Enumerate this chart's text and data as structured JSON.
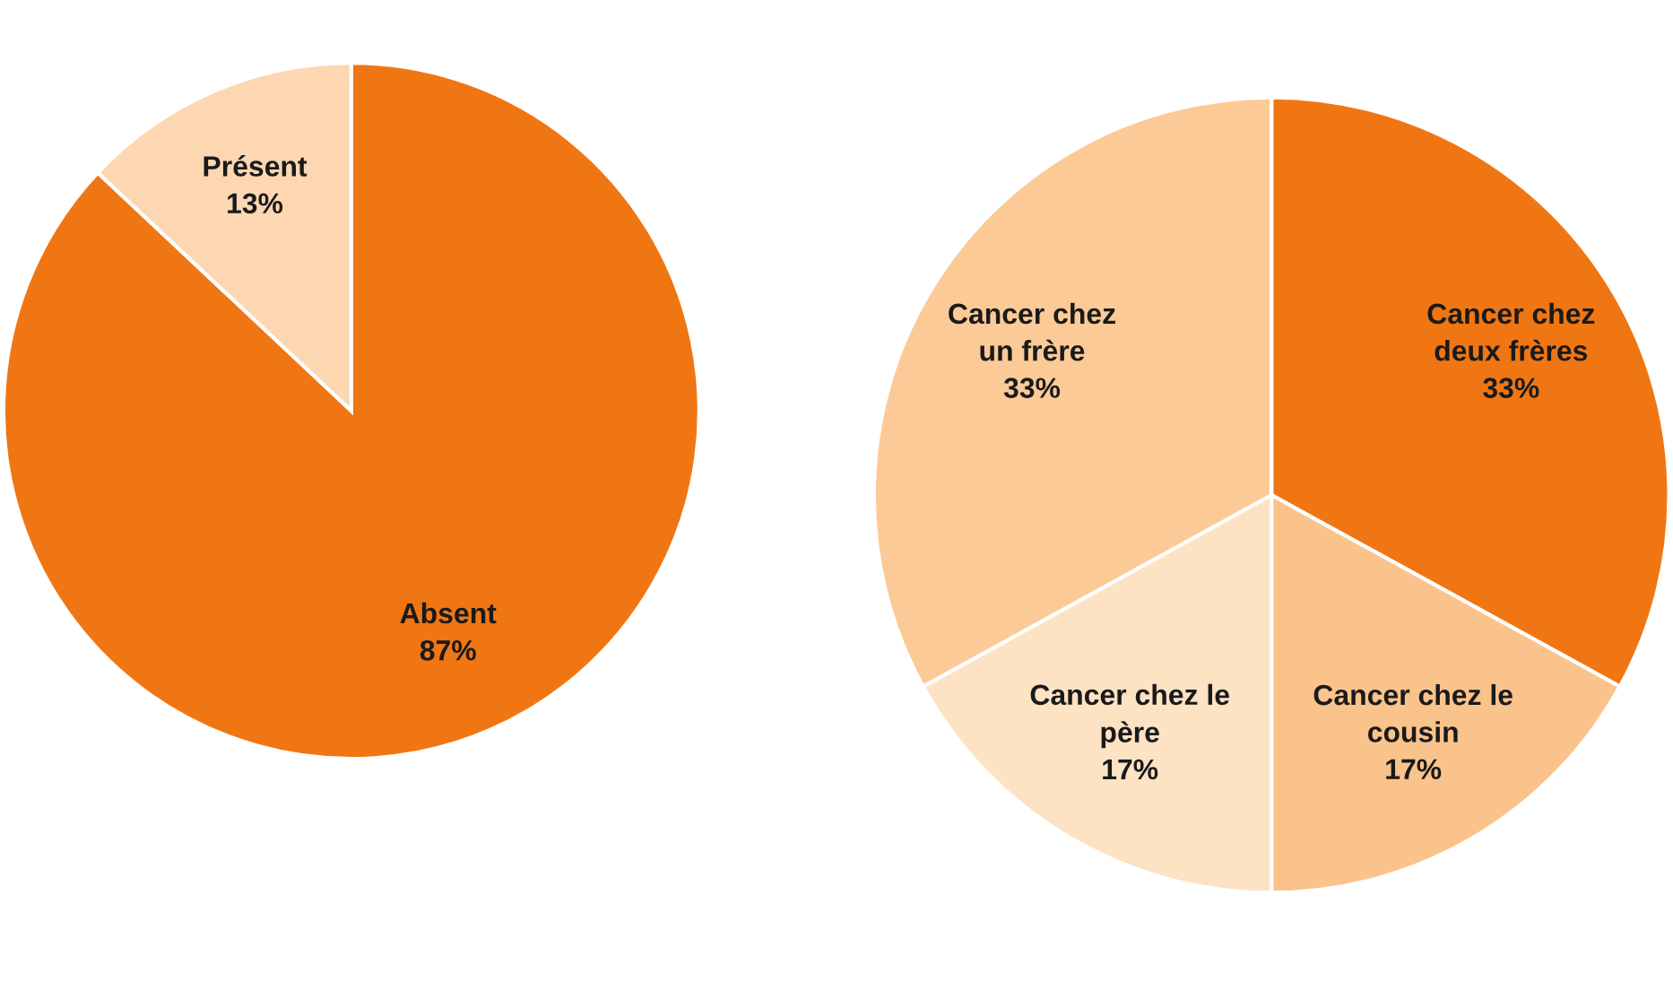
{
  "chart_data": [
    {
      "type": "pie",
      "categories": [
        "Absent",
        "Présent"
      ],
      "values": [
        87,
        13
      ],
      "value_labels": [
        "87%",
        "13%"
      ],
      "colors": [
        "#f07614",
        "#fcd7b2"
      ]
    },
    {
      "type": "pie",
      "categories": [
        "Cancer chez\ndeux frères",
        "Cancer chez le\ncousin",
        "Cancer chez le\npère",
        "Cancer chez\nun frère"
      ],
      "values": [
        33,
        17,
        17,
        33
      ],
      "value_labels": [
        "33%",
        "17%",
        "17%",
        "33%"
      ],
      "colors": [
        "#f07614",
        "#fbc38c",
        "#fde2c4",
        "#fcca97"
      ]
    }
  ]
}
